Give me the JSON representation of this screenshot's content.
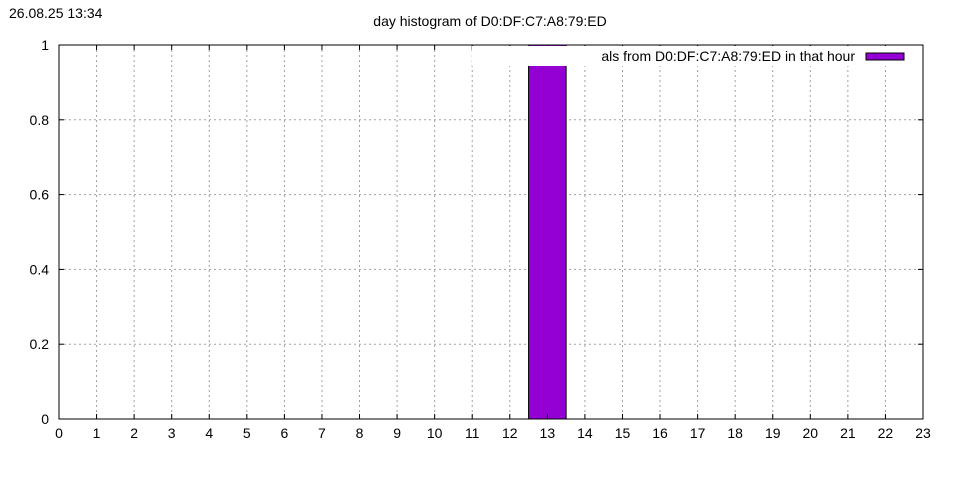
{
  "timestamp": "26.08.25 13:34",
  "chart_data": {
    "type": "bar",
    "title": "day histogram of D0:DF:C7:A8:79:ED",
    "xlabel": "",
    "ylabel": "",
    "xlim": [
      0,
      23
    ],
    "ylim": [
      0,
      1
    ],
    "xticks": [
      "0",
      "1",
      "2",
      "3",
      "4",
      "5",
      "6",
      "7",
      "8",
      "9",
      "10",
      "11",
      "12",
      "13",
      "14",
      "15",
      "16",
      "17",
      "18",
      "19",
      "20",
      "21",
      "22",
      "23"
    ],
    "yticks": [
      "0",
      "0.2",
      "0.4",
      "0.6",
      "0.8",
      "1"
    ],
    "grid": true,
    "legend_position": "top-right",
    "series": [
      {
        "name": "als from D0:DF:C7:A8:79:ED in that hour",
        "color": "#9400d3",
        "x": [
          13
        ],
        "values": [
          1
        ]
      }
    ]
  }
}
